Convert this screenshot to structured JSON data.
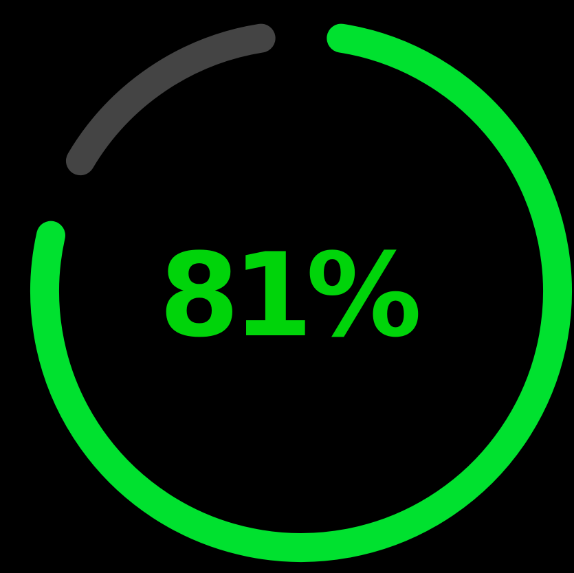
{
  "progress": {
    "value": 0.81,
    "label": "81%",
    "fill_color": "#00E12F",
    "track_color": "#444444",
    "text_color": "#00D40A",
    "background": "#000000"
  }
}
